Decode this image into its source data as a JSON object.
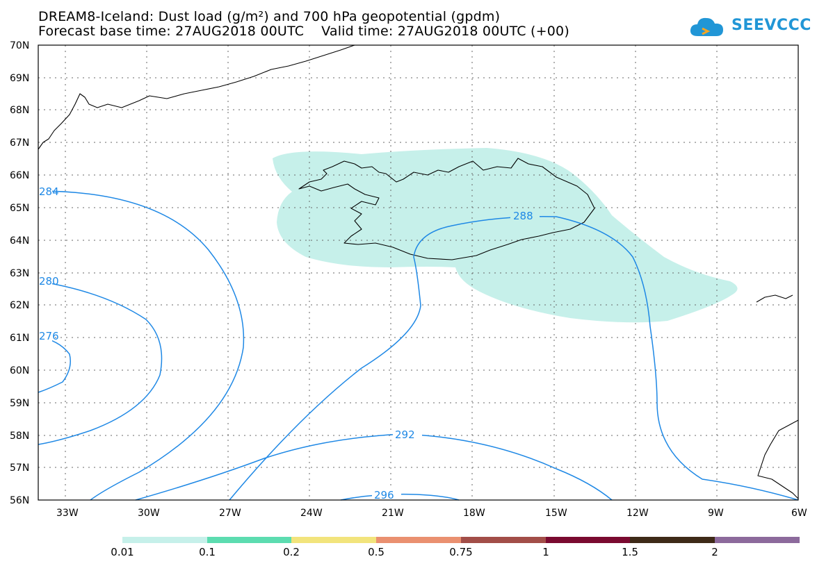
{
  "title_line1": "DREAM8-Iceland: Dust load (g/m²) and 700 hPa geopotential (gpdm)",
  "title_line2": "Forecast base time: 27AUG2018 00UTC    Valid time: 27AUG2018 00UTC (+00)",
  "logo_text": "SEEVCCC",
  "colors": {
    "dust_fill": "#c6f0ea",
    "contour": "#1e88e5",
    "coast": "#000000"
  },
  "lat_labels": [
    "70N",
    "69N",
    "68N",
    "67N",
    "66N",
    "65N",
    "64N",
    "63N",
    "62N",
    "61N",
    "60N",
    "59N",
    "58N",
    "57N",
    "56N"
  ],
  "lon_labels": [
    "33W",
    "30W",
    "27W",
    "24W",
    "21W",
    "18W",
    "15W",
    "12W",
    "9W",
    "6W"
  ],
  "contour_labels": [
    "284",
    "280",
    "276",
    "288",
    "292",
    "296"
  ],
  "colorbar": {
    "labels": [
      "0.01",
      "0.1",
      "0.2",
      "0.5",
      "0.75",
      "1",
      "1.5",
      "2"
    ],
    "colors": [
      "#c6f0ea",
      "#5cdcb0",
      "#f2e47c",
      "#ea9070",
      "#a24e48",
      "#7a0a30",
      "#3e2a18",
      "#8c6a9c"
    ]
  }
}
